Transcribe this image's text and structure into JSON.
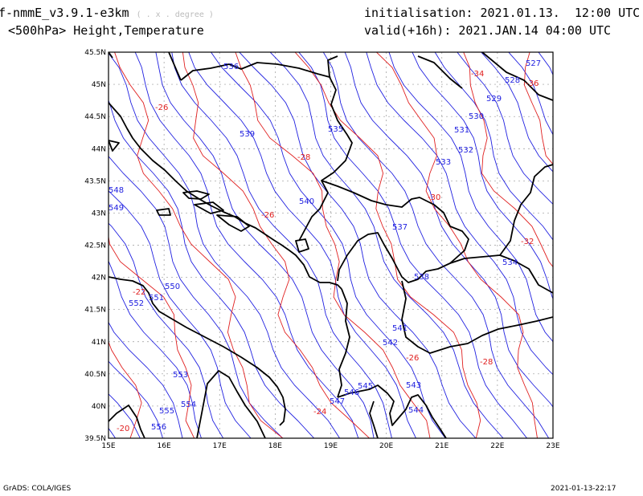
{
  "header": {
    "model": "f-nmmE_v3.9.1-e3km",
    "projection": "( . x . degree )",
    "subtitle": "<500hPa> Height,Temperature",
    "init_label": "initialisation:",
    "init_value": "2021.01.13.  12:00 UTC",
    "valid_label": "valid(+16h):",
    "valid_value": "2021.JAN.14 04:00 UTC"
  },
  "map": {
    "lon_ticks": [
      "15E",
      "16E",
      "17E",
      "18E",
      "19E",
      "20E",
      "21E",
      "22E",
      "23E"
    ],
    "lat_ticks": [
      "39.5N",
      "40N",
      "40.5N",
      "41N",
      "41.5N",
      "42N",
      "42.5N",
      "43N",
      "43.5N",
      "44N",
      "44.5N",
      "45N",
      "45.5N"
    ],
    "height_contour_color": "#2020e0",
    "temperature_contour_color": "#e02020",
    "height_labels": [
      "536",
      "539",
      "535",
      "540",
      "537",
      "538",
      "541",
      "542",
      "543",
      "544",
      "545",
      "546",
      "547",
      "550",
      "551",
      "552",
      "553",
      "554",
      "555",
      "556",
      "527",
      "528",
      "529",
      "530",
      "531",
      "532",
      "533",
      "534",
      "548",
      "549"
    ],
    "temperature_labels": [
      "-26",
      "-28",
      "-26",
      "-30",
      "-32",
      "-34",
      "-36",
      "-22",
      "-24",
      "-26",
      "-28",
      "-20"
    ]
  },
  "footer": {
    "left": "GrADS: COLA/IGES",
    "right": "2021-01-13-22:17"
  }
}
